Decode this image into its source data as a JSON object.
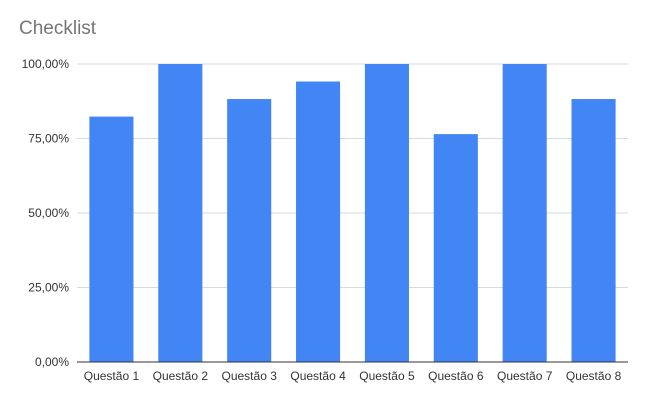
{
  "chart_data": {
    "type": "bar",
    "title": "Checklist",
    "categories": [
      "Questão 1",
      "Questão 2",
      "Questão 3",
      "Questão 4",
      "Questão 5",
      "Questão 6",
      "Questão 7",
      "Questão 8"
    ],
    "values": [
      82.35,
      100,
      88.24,
      94.12,
      100,
      76.47,
      100,
      88.24
    ],
    "value_format": "percent",
    "ylim": [
      0,
      100
    ],
    "yticks": [
      0,
      25,
      50,
      75,
      100
    ],
    "ytick_labels": [
      "0,00%",
      "25,00%",
      "50,00%",
      "75,00%",
      "100,00%"
    ],
    "xlabel": "",
    "ylabel": "",
    "grid": true,
    "legend": "none",
    "colors": {
      "bar": "#4285f4",
      "grid": "#d9d9d9",
      "axis": "#333333",
      "title": "#757575"
    }
  }
}
